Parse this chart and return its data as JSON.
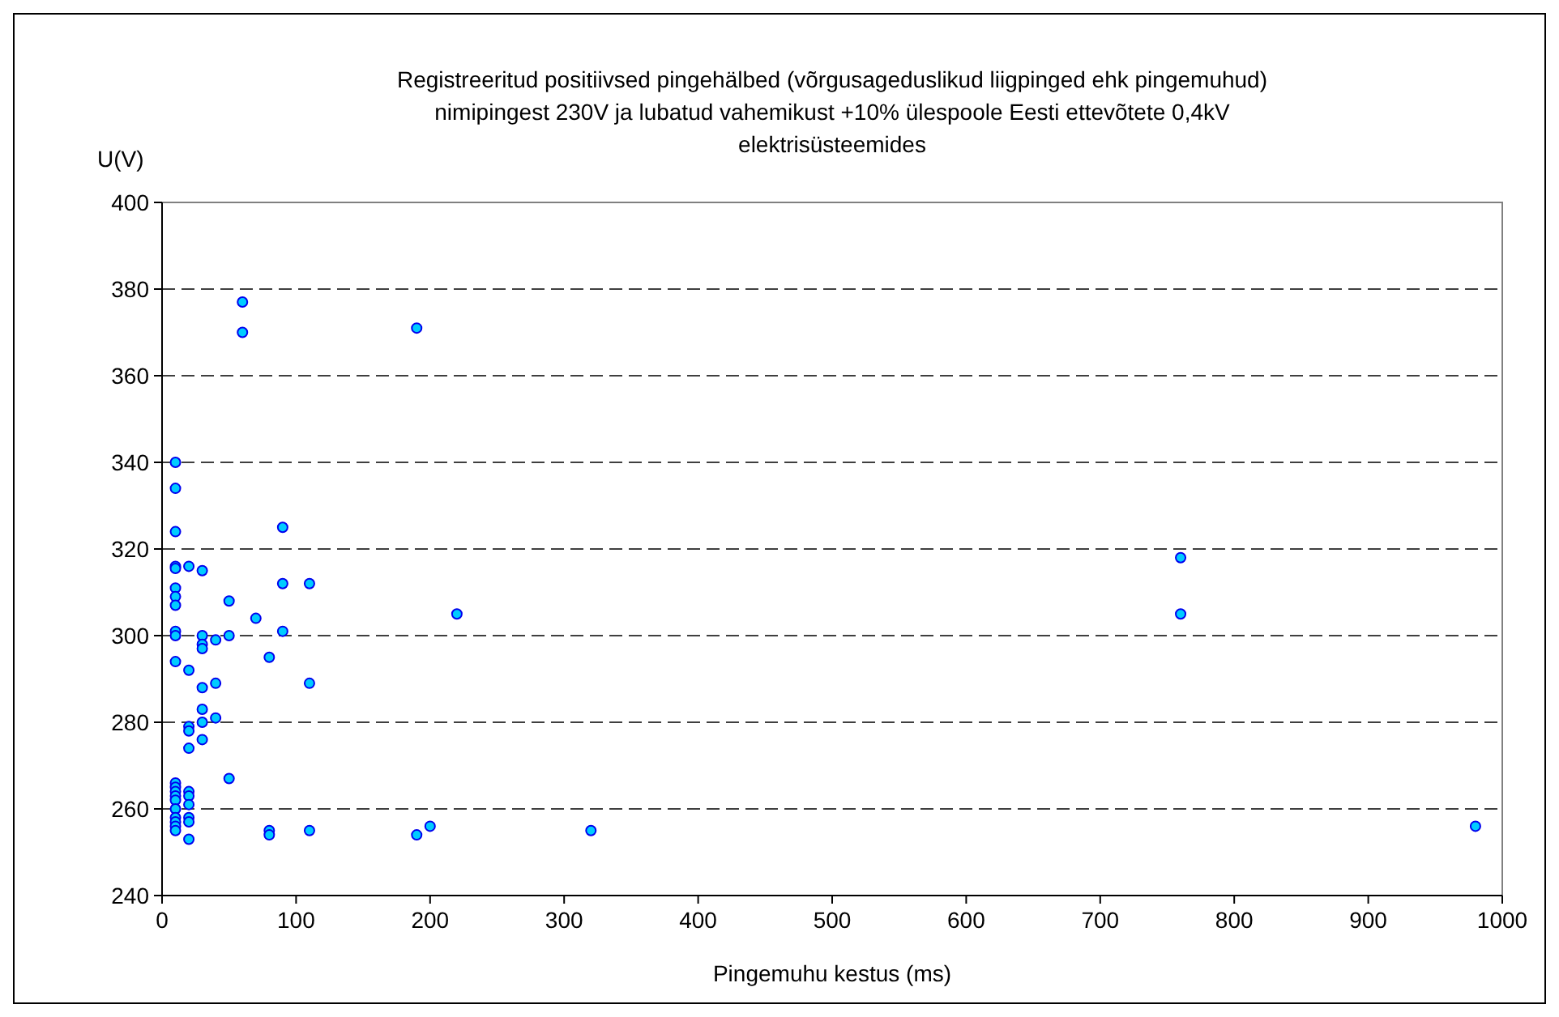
{
  "chart_data": {
    "type": "scatter",
    "title": "Registreeritud positiivsed pingehälbed (võrgusageduslikud liigpinged ehk pingemuhud)\nnimipingest 230V ja lubatud vahemikust +10% ülespoole Eesti ettevõtete 0,4kV\nelektrisüsteemides",
    "xlabel": "Pingemuhu kestus (ms)",
    "ylabel": "U(V)",
    "xlim": [
      0,
      1000
    ],
    "xticks": [
      0,
      100,
      200,
      300,
      400,
      500,
      600,
      700,
      800,
      900,
      1000
    ],
    "ylim": [
      240,
      400
    ],
    "yticks": [
      240,
      260,
      280,
      300,
      320,
      340,
      360,
      380,
      400
    ],
    "grid": "y",
    "marker": "circle",
    "series": [
      {
        "color": "#00ccff",
        "x": [
          10,
          10,
          10,
          10,
          10,
          10,
          10,
          10,
          10,
          10,
          10,
          10,
          10,
          10,
          10,
          10,
          10,
          10,
          10,
          10,
          10,
          20,
          20,
          20,
          20,
          20,
          20,
          20,
          20,
          20,
          20,
          20,
          30,
          30,
          30,
          30,
          30,
          30,
          30,
          30,
          40,
          40,
          40,
          50,
          50,
          50,
          60,
          60,
          70,
          80,
          80,
          80,
          90,
          90,
          90,
          110,
          110,
          110,
          190,
          190,
          200,
          220,
          320,
          760,
          760,
          980
        ],
        "values": [
          340,
          334,
          324,
          316,
          315.5,
          311,
          309,
          307,
          301,
          300,
          294,
          266,
          265,
          264,
          263,
          262,
          260,
          258,
          257,
          256,
          255,
          316,
          292,
          279,
          278,
          274,
          264,
          263,
          261,
          258,
          257,
          253,
          315,
          300,
          298,
          297,
          288,
          283,
          280,
          276,
          299,
          289,
          281,
          308,
          300,
          267,
          377,
          370,
          304,
          295,
          255,
          254,
          325,
          312,
          301,
          312,
          289,
          255,
          371,
          254,
          256,
          305,
          255,
          318,
          305,
          256
        ]
      }
    ]
  }
}
